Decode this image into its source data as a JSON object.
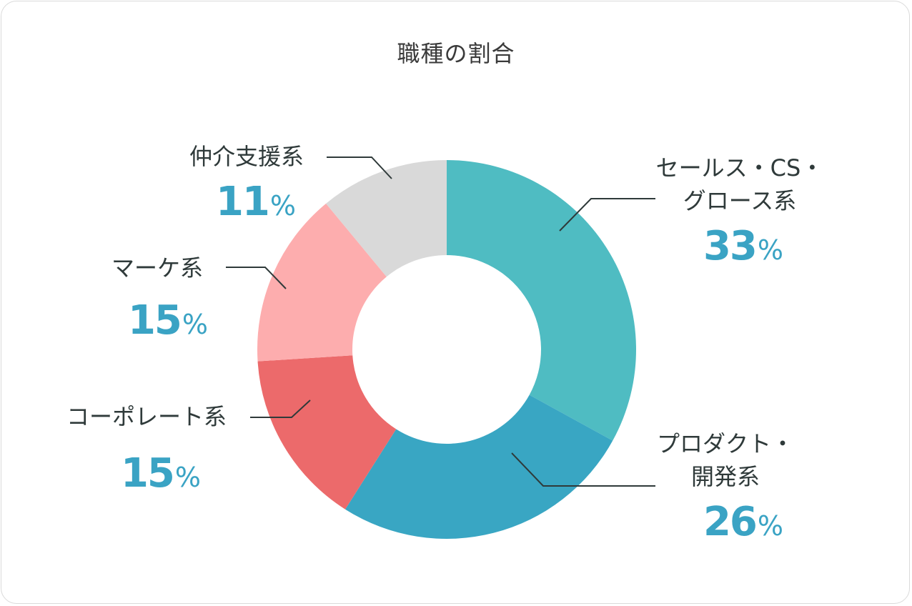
{
  "chart_data": {
    "type": "pie",
    "title": "職種の割合",
    "donut": true,
    "slices": [
      {
        "label_lines": [
          "セールス・CS・",
          "グロース系"
        ],
        "value": 33,
        "color": "#4fbcc2"
      },
      {
        "label_lines": [
          "プロダクト・",
          "開発系"
        ],
        "value": 26,
        "color": "#39a6c3"
      },
      {
        "label_lines": [
          "コーポレート系"
        ],
        "value": 15,
        "color": "#ec6a6b"
      },
      {
        "label_lines": [
          "マーケ系"
        ],
        "value": 15,
        "color": "#fdadae"
      },
      {
        "label_lines": [
          "仲介支援系"
        ],
        "value": 11,
        "color": "#d9d9d9"
      }
    ],
    "unit": "%",
    "percent_color": "#3aa3c4"
  }
}
